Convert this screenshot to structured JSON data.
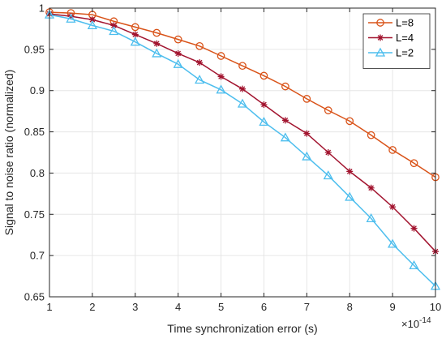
{
  "chart_data": {
    "type": "line",
    "xlabel": "Time synchronization error (s)",
    "ylabel": "Signal to noise ratio (normalized)",
    "x_exponent_label": "×10",
    "x_exponent_power": "-14",
    "xlim": [
      1,
      10
    ],
    "ylim": [
      0.65,
      1
    ],
    "x_ticks": [
      "1",
      "2",
      "3",
      "4",
      "5",
      "6",
      "7",
      "8",
      "9",
      "10"
    ],
    "y_ticks": [
      "0.65",
      "0.7",
      "0.75",
      "0.8",
      "0.85",
      "0.9",
      "0.95",
      "1"
    ],
    "grid": true,
    "legend_position": "top-right",
    "x": [
      1,
      1.5,
      2,
      2.5,
      3,
      3.5,
      4,
      4.5,
      5,
      5.5,
      6,
      6.5,
      7,
      7.5,
      8,
      8.5,
      9,
      9.5,
      10
    ],
    "series": [
      {
        "name": "L=8",
        "color": "#D95319",
        "marker": "circle",
        "values": [
          0.995,
          0.994,
          0.992,
          0.984,
          0.977,
          0.97,
          0.962,
          0.954,
          0.942,
          0.93,
          0.918,
          0.905,
          0.89,
          0.876,
          0.863,
          0.846,
          0.828,
          0.812,
          0.795
        ]
      },
      {
        "name": "L=4",
        "color": "#A2142F",
        "marker": "star",
        "values": [
          0.993,
          0.99,
          0.986,
          0.979,
          0.968,
          0.957,
          0.945,
          0.934,
          0.917,
          0.902,
          0.883,
          0.864,
          0.848,
          0.825,
          0.802,
          0.782,
          0.759,
          0.733,
          0.705
        ]
      },
      {
        "name": "L=2",
        "color": "#4DBEEE",
        "marker": "triangle",
        "values": [
          0.992,
          0.987,
          0.979,
          0.972,
          0.959,
          0.945,
          0.932,
          0.913,
          0.901,
          0.884,
          0.862,
          0.843,
          0.82,
          0.797,
          0.771,
          0.745,
          0.714,
          0.688,
          0.663
        ]
      }
    ]
  }
}
